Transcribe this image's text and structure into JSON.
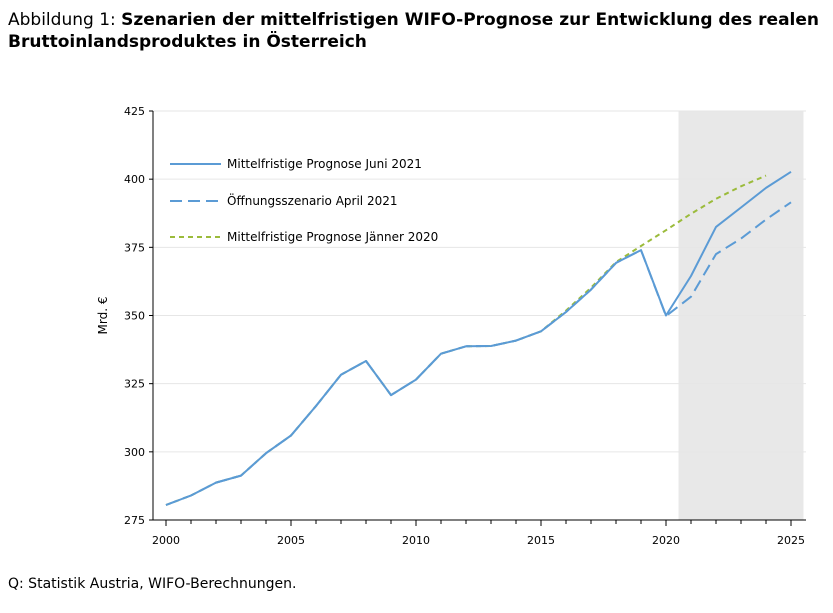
{
  "title": {
    "prefix": "Abbildung 1: ",
    "main": "Szenarien der mittelfristigen WIFO-Prognose zur Entwicklung des realen Bruttoinlandsproduktes in Österreich"
  },
  "source": "Q: Statistik Austria, WIFO-Berechnungen.",
  "colors": {
    "juni2021": "#5B9BD5",
    "april2021": "#5B9BD5",
    "jaenner2020": "#9BBB3B",
    "forecast_shade": "#E8E8E8",
    "grid": "#E6E6E6"
  },
  "chart_data": {
    "type": "line",
    "ylabel": "Mrd. €",
    "xlabel": "",
    "xlim": [
      2000,
      2025
    ],
    "ylim": [
      275,
      425
    ],
    "xticks": [
      2000,
      2005,
      2010,
      2015,
      2020,
      2025
    ],
    "yticks": [
      275,
      300,
      325,
      350,
      375,
      400,
      425
    ],
    "grid": "horizontal",
    "legend_position": "top-left",
    "shaded_range": [
      2020.5,
      2025.5
    ],
    "series": [
      {
        "name": "Mittelfristige Prognose Juni 2021",
        "style": "solid",
        "x": [
          2000,
          2001,
          2002,
          2003,
          2004,
          2005,
          2006,
          2007,
          2008,
          2009,
          2010,
          2011,
          2012,
          2013,
          2014,
          2015,
          2016,
          2017,
          2018,
          2019,
          2020,
          2021,
          2022,
          2023,
          2024,
          2025
        ],
        "values": [
          280.5,
          284,
          288.7,
          291.3,
          299.5,
          306,
          316.8,
          328.3,
          333.3,
          320.8,
          326.5,
          336,
          338.7,
          338.8,
          340.8,
          344.2,
          351.3,
          359.5,
          369.3,
          374,
          350,
          364.5,
          382.5,
          389.6,
          396.8,
          402.7
        ]
      },
      {
        "name": "Öffnungsszenario April 2021",
        "style": "dashed",
        "x": [
          2000,
          2001,
          2002,
          2003,
          2004,
          2005,
          2006,
          2007,
          2008,
          2009,
          2010,
          2011,
          2012,
          2013,
          2014,
          2015,
          2016,
          2017,
          2018,
          2019,
          2020,
          2021,
          2022,
          2023,
          2024,
          2025
        ],
        "values": [
          280.5,
          284,
          288.7,
          291.3,
          299.5,
          306,
          316.8,
          328.3,
          333.3,
          320.8,
          326.5,
          336,
          338.7,
          338.8,
          340.8,
          344.2,
          351.3,
          359.5,
          369.3,
          374,
          349.8,
          356.9,
          372.5,
          378.2,
          385.2,
          391.5
        ]
      },
      {
        "name": "Mittelfristige Prognose Jänner 2020",
        "style": "dotted",
        "x": [
          2000,
          2001,
          2002,
          2003,
          2004,
          2005,
          2006,
          2007,
          2008,
          2009,
          2010,
          2011,
          2012,
          2013,
          2014,
          2015,
          2016,
          2017,
          2018,
          2019,
          2020,
          2021,
          2022,
          2023,
          2024
        ],
        "values": [
          280.5,
          284,
          288.7,
          291.3,
          299.5,
          306,
          316.8,
          328.3,
          333.3,
          320.8,
          326.5,
          336,
          338.7,
          338.8,
          340.8,
          344.2,
          351.8,
          360.2,
          369.6,
          375.5,
          381.3,
          387.3,
          392.8,
          397.4,
          401.3
        ]
      }
    ]
  }
}
